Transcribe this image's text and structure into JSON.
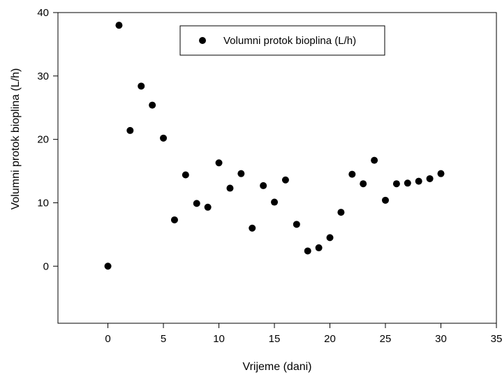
{
  "chart_data": {
    "type": "scatter",
    "xlabel": "Vrijeme (dani)",
    "ylabel": "Volumni protok bioplina (L/h)",
    "xlim": [
      -4.5,
      35
    ],
    "ylim": [
      -9,
      40
    ],
    "xticks": [
      0,
      5,
      10,
      15,
      20,
      25,
      30,
      35
    ],
    "yticks": [
      0,
      10,
      20,
      30,
      40
    ],
    "grid": false,
    "legend_position": "top-center",
    "marker_color": "#000000",
    "series": [
      {
        "name": "Volumni protok bioplina (L/h)",
        "x": [
          0,
          1,
          2,
          3,
          4,
          5,
          6,
          7,
          8,
          9,
          10,
          11,
          12,
          13,
          14,
          15,
          16,
          17,
          18,
          19,
          20,
          21,
          22,
          23,
          24,
          25,
          26,
          27,
          28,
          29,
          30
        ],
        "y": [
          0.0,
          38.0,
          21.4,
          28.4,
          25.4,
          20.2,
          7.3,
          14.4,
          9.9,
          9.3,
          16.3,
          12.3,
          14.6,
          6.0,
          12.7,
          10.1,
          13.6,
          6.6,
          2.4,
          2.9,
          4.5,
          8.5,
          14.5,
          13.0,
          16.7,
          10.4,
          13.0,
          13.1,
          13.4,
          13.8,
          14.6
        ]
      }
    ]
  }
}
